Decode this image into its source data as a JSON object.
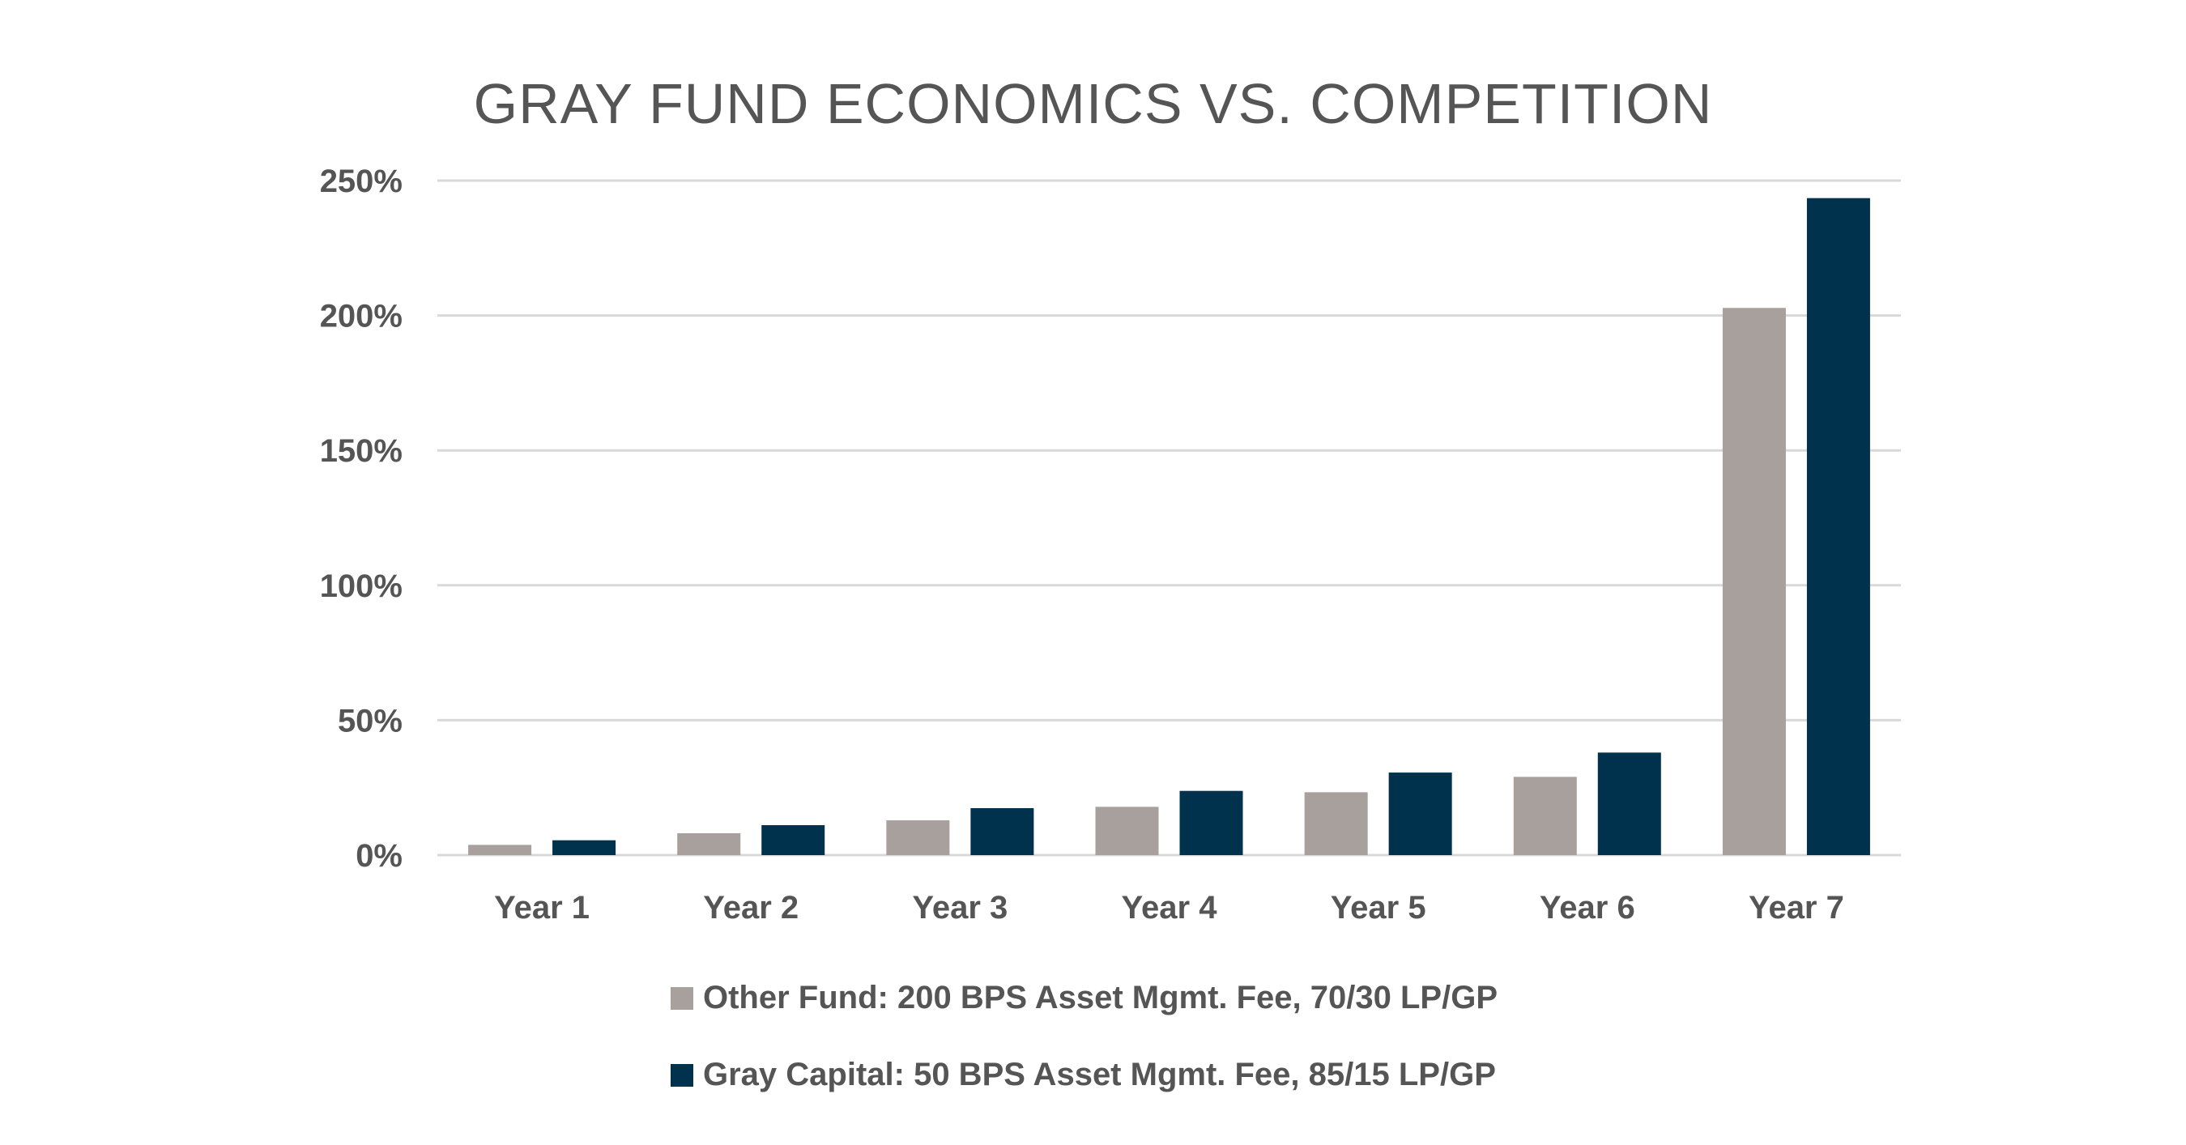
{
  "chart_data": {
    "type": "bar",
    "title": "GRAY FUND ECONOMICS VS. COMPETITION",
    "xlabel": "",
    "ylabel": "",
    "categories": [
      "Year 1",
      "Year 2",
      "Year 3",
      "Year 4",
      "Year 5",
      "Year 6",
      "Year 7"
    ],
    "ylim": [
      0,
      250
    ],
    "yticks": [
      0,
      50,
      100,
      150,
      200,
      250
    ],
    "ytick_labels": [
      "0%",
      "50%",
      "100%",
      "150%",
      "200%",
      "250%"
    ],
    "grid": true,
    "legend_placement": "bottom",
    "series": [
      {
        "name": "Other Fund: 200 BPS Asset Mgmt. Fee, 70/30 LP/GP",
        "color": "#a8a09d",
        "values": [
          3.8,
          8.1,
          12.9,
          17.9,
          23.3,
          29.0,
          202.8
        ]
      },
      {
        "name": "Gray Capital: 50 BPS Asset Mgmt. Fee, 85/15 LP/GP",
        "color": "#01324d",
        "values": [
          5.5,
          11.1,
          17.4,
          23.8,
          30.6,
          38.0,
          243.5
        ]
      }
    ]
  }
}
